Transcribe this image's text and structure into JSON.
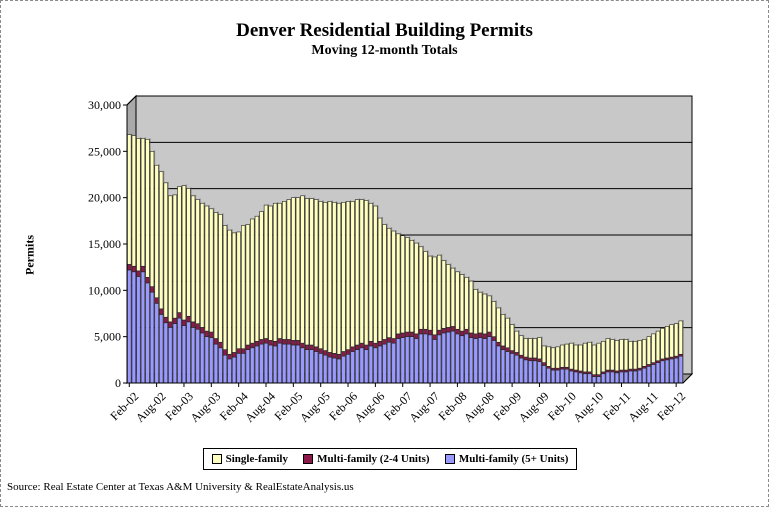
{
  "title": "Denver Residential Building Permits",
  "subtitle": "Moving 12-month Totals",
  "source": "Source: Real Estate Center at Texas A&M University & RealEstateAnalysis.us",
  "colors": {
    "single": "#FFFFC0",
    "multi24": "#8B1A4A",
    "multi5": "#9999FF",
    "plotBg": "#C8C8C8"
  },
  "chart_data": {
    "type": "bar",
    "stacked": true,
    "ylabel": "Permits",
    "ylim": [
      0,
      30000
    ],
    "yticks": [
      "0",
      "5,000",
      "10,000",
      "15,000",
      "20,000",
      "25,000",
      "30,000"
    ],
    "xticks": [
      "Feb-02",
      "Aug-02",
      "Feb-03",
      "Aug-03",
      "Feb-04",
      "Aug-04",
      "Feb-05",
      "Aug-05",
      "Feb-06",
      "Aug-06",
      "Feb-07",
      "Aug-07",
      "Feb-08",
      "Aug-08",
      "Feb-09",
      "Aug-09",
      "Feb-10",
      "Aug-10",
      "Feb-11",
      "Aug-11",
      "Feb-12"
    ],
    "legend": [
      "Single-family",
      "Multi-family (2-4 Units)",
      "Multi-family (5+ Units)"
    ],
    "x_start": "Feb-02",
    "x_end": "Mar-12",
    "months": 122,
    "series": [
      {
        "name": "Multi-family (5+ Units)",
        "values": [
          12200,
          12000,
          11500,
          12000,
          10800,
          9800,
          8600,
          7400,
          6500,
          6000,
          6400,
          7000,
          6200,
          6600,
          6000,
          5800,
          5400,
          5000,
          4900,
          4200,
          3800,
          3000,
          2600,
          2800,
          3200,
          3200,
          3600,
          3800,
          4000,
          4200,
          4300,
          4100,
          4000,
          4300,
          4200,
          4200,
          4100,
          4100,
          3800,
          3600,
          3600,
          3400,
          3200,
          3000,
          2800,
          2700,
          2600,
          2900,
          3100,
          3400,
          3600,
          3800,
          3600,
          4000,
          3800,
          4000,
          4200,
          4400,
          4300,
          4800,
          4900,
          5000,
          5000,
          4800,
          5300,
          5300,
          5200,
          4700,
          5200,
          5400,
          5500,
          5600,
          5300,
          5100,
          5300,
          4900,
          4800,
          4900,
          4800,
          5000,
          4600,
          4000,
          3600,
          3400,
          3200,
          3000,
          2700,
          2500,
          2400,
          2400,
          2300,
          1900,
          1600,
          1400,
          1400,
          1500,
          1500,
          1300,
          1200,
          1100,
          1000,
          1000,
          700,
          700,
          1000,
          1200,
          1200,
          1100,
          1200,
          1200,
          1300,
          1300,
          1400,
          1600,
          1800,
          2000,
          2200,
          2400,
          2500,
          2600,
          2700,
          2900
        ]
      },
      {
        "name": "Multi-family (2-4 Units)",
        "values": [
          600,
          600,
          600,
          600,
          600,
          600,
          600,
          600,
          600,
          600,
          600,
          600,
          600,
          600,
          600,
          600,
          600,
          600,
          600,
          600,
          600,
          600,
          500,
          500,
          500,
          500,
          500,
          500,
          500,
          500,
          500,
          500,
          500,
          500,
          500,
          500,
          500,
          500,
          500,
          500,
          500,
          500,
          500,
          500,
          500,
          500,
          500,
          500,
          500,
          500,
          500,
          500,
          500,
          500,
          500,
          500,
          500,
          500,
          500,
          500,
          500,
          500,
          500,
          500,
          500,
          500,
          500,
          500,
          500,
          500,
          500,
          500,
          500,
          500,
          500,
          500,
          500,
          500,
          500,
          500,
          400,
          400,
          400,
          400,
          300,
          300,
          300,
          300,
          300,
          300,
          300,
          300,
          200,
          200,
          200,
          200,
          200,
          200,
          200,
          200,
          200,
          200,
          200,
          200,
          200,
          200,
          200,
          200,
          200,
          200,
          200,
          200,
          200,
          200,
          200,
          200,
          200,
          200,
          200,
          200,
          200,
          200
        ]
      },
      {
        "name": "Single-family",
        "values": [
          14000,
          14100,
          14300,
          13800,
          14900,
          14600,
          14300,
          14800,
          14500,
          13600,
          13300,
          13600,
          14500,
          13800,
          13600,
          13400,
          13400,
          13500,
          13300,
          13600,
          13800,
          13400,
          13400,
          12900,
          12600,
          13300,
          13000,
          13400,
          13500,
          13800,
          14400,
          14500,
          14900,
          14600,
          14900,
          15100,
          15400,
          15400,
          15900,
          15800,
          15800,
          15900,
          15900,
          16000,
          16300,
          16300,
          16300,
          16100,
          16000,
          15700,
          15700,
          15500,
          15600,
          14900,
          14800,
          13300,
          12400,
          11800,
          11600,
          10800,
          10500,
          10200,
          9900,
          9800,
          8900,
          8400,
          8000,
          8400,
          8100,
          7300,
          6800,
          6300,
          6200,
          6100,
          5600,
          5600,
          4800,
          4400,
          4300,
          3900,
          3800,
          3700,
          3400,
          3200,
          2800,
          2300,
          2100,
          2000,
          2100,
          2100,
          2300,
          1800,
          2100,
          2200,
          2300,
          2400,
          2500,
          2800,
          2700,
          2800,
          3100,
          3200,
          3200,
          3400,
          3300,
          3400,
          3300,
          3300,
          3300,
          3300,
          3000,
          3000,
          3000,
          2900,
          3000,
          3100,
          3200,
          3300,
          3400,
          3500,
          3500,
          3600
        ]
      }
    ]
  }
}
